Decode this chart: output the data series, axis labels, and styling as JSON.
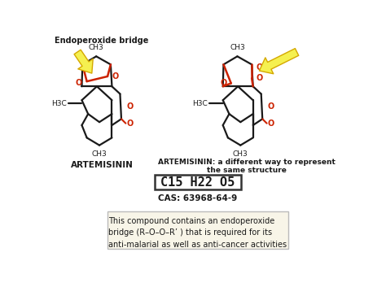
{
  "background_color": "#ffffff",
  "formula_text": "C15 H22 O5",
  "cas_text": "CAS: 63968-64-9",
  "endoperoxide_label": "Endoperoxide bridge",
  "artemisinin_label": "ARTEMISININ",
  "artemisinin2_label": "ARTEMISININ: a different way to represent\nthe same structure",
  "info_text": "This compound contains an endoperoxide\nbridge (R–O–O–R’ ) that is required for its\nanti-malarial as well as anti-cancer activities",
  "black": "#1a1a1a",
  "red": "#cc2200",
  "yellow_fill": "#f5f050",
  "yellow_edge": "#d4a800",
  "gray_box_face": "#f8f5e8",
  "gray_box_edge": "#bbbbbb",
  "formula_box_face": "#ffffff",
  "formula_box_edge": "#333333"
}
